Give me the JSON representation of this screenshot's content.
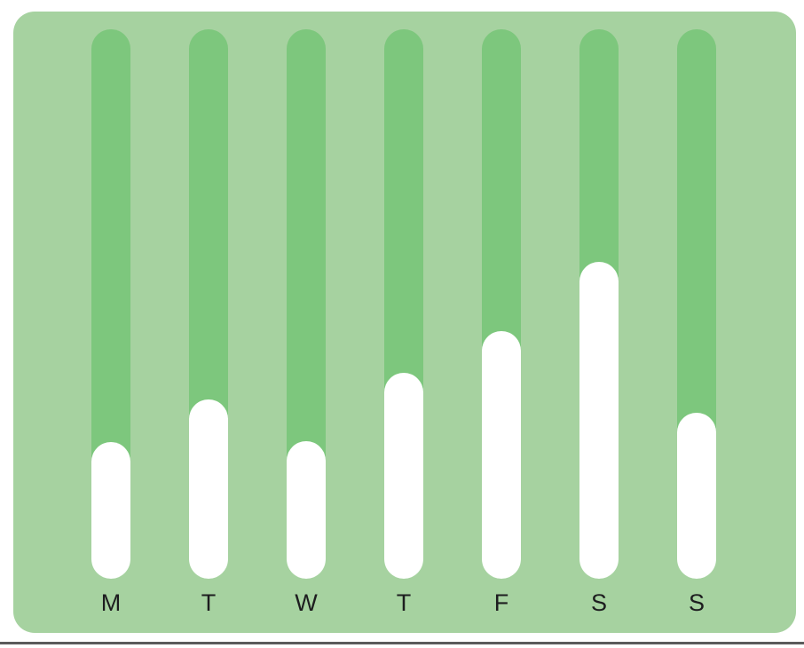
{
  "chart_data": {
    "type": "bar",
    "title": "",
    "xlabel": "",
    "ylabel": "",
    "categories": [
      "M",
      "T",
      "W",
      "T",
      "F",
      "S",
      "S"
    ],
    "values": [
      24.9,
      32.6,
      25.1,
      37.5,
      45.1,
      57.7,
      30.2
    ],
    "values_unit": "percent of track height filled",
    "ylim": [
      0,
      100
    ],
    "orientation": "vertical",
    "grid": false,
    "legend_position": "none",
    "bar_shape": "rounded-pill",
    "track_background_shown": true
  },
  "colors": {
    "page_background": "#ffffff",
    "panel_background": "#a6d2a0",
    "track_green": "#7dc77d",
    "bar_fill": "#ffffff",
    "label_text": "#1d1d1f",
    "baseline_rule": "#5b5b5b"
  }
}
